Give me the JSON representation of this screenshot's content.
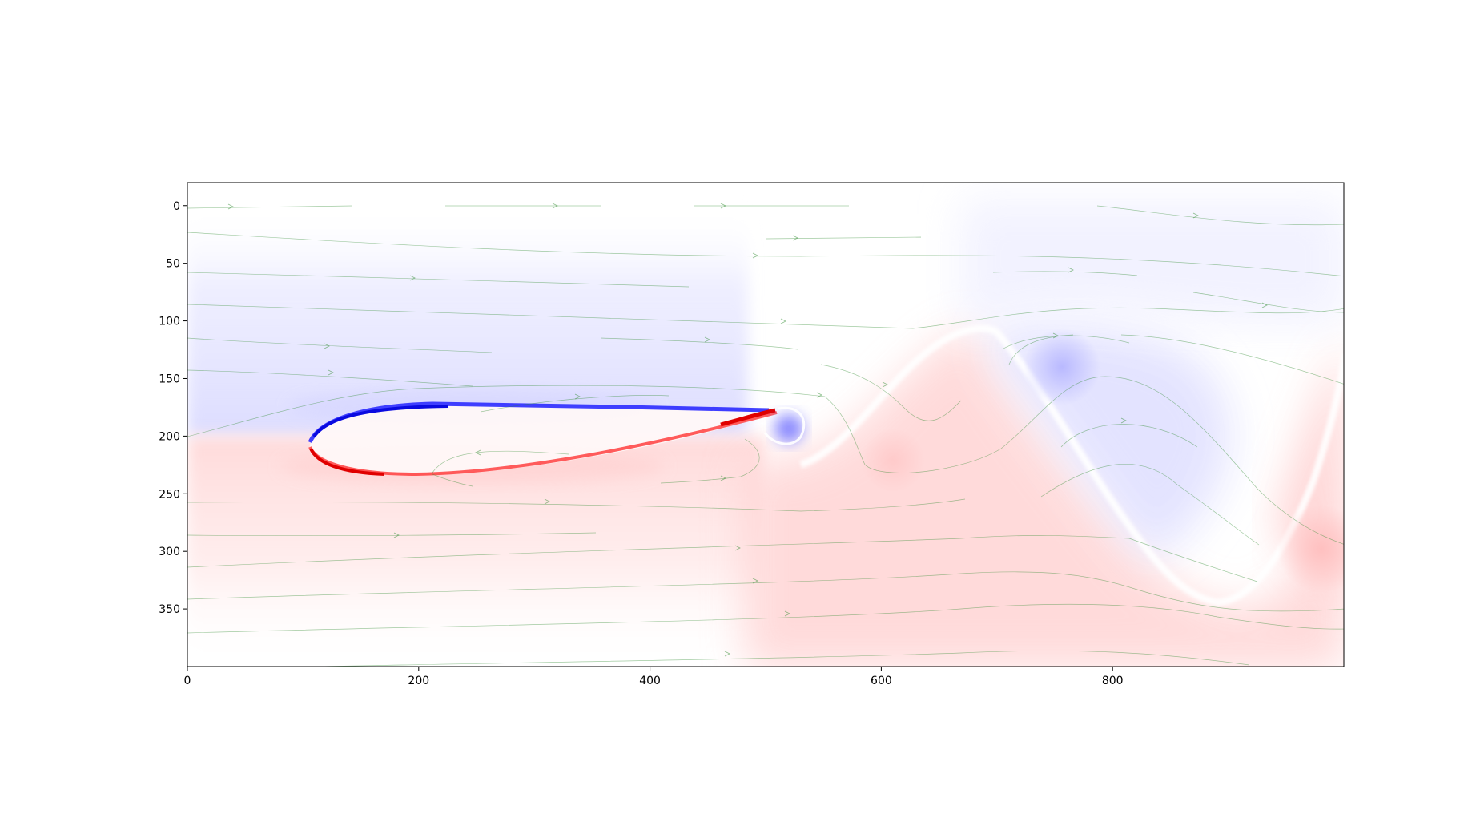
{
  "chart_data": {
    "type": "heatmap",
    "description_kind": "vorticity field with streamlines around an airfoil",
    "title": "",
    "xlabel": "",
    "ylabel": "",
    "xlim": [
      0,
      1000
    ],
    "ylim": [
      400,
      -20
    ],
    "y_inverted": true,
    "grid": false,
    "x_ticks": [
      0,
      200,
      400,
      600,
      800
    ],
    "x_tick_labels": [
      "0",
      "200",
      "400",
      "600",
      "800"
    ],
    "y_ticks": [
      0,
      50,
      100,
      150,
      200,
      250,
      300,
      350
    ],
    "y_tick_labels": [
      "0",
      "50",
      "100",
      "150",
      "200",
      "250",
      "300",
      "350"
    ],
    "colormap": "bwr",
    "colors": {
      "negative": "#3b3bff",
      "positive": "#ff2a2a",
      "streamline": "#2e8b2e",
      "axes": "#000000"
    },
    "regions": [
      {
        "sign": "negative",
        "label": "upper flow band",
        "x": [
          0,
          1000
        ],
        "y": [
          20,
          200
        ]
      },
      {
        "sign": "positive",
        "label": "lower flow band",
        "x": [
          0,
          1000
        ],
        "y": [
          200,
          400
        ]
      },
      {
        "sign": "negative",
        "label": "vortex core",
        "x": 755,
        "y": 140
      },
      {
        "sign": "negative",
        "label": "trailing edge vortex",
        "x": 520,
        "y": 200
      },
      {
        "sign": "positive",
        "label": "right edge vortex",
        "x": 980,
        "y": 295
      }
    ],
    "airfoil": {
      "leading_edge": [
        105,
        210
      ],
      "trailing_edge": [
        510,
        180
      ]
    }
  }
}
